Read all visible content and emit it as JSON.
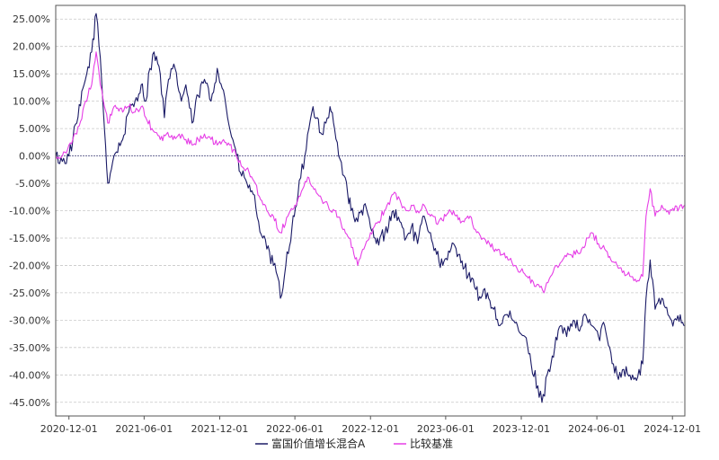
{
  "chart_data": {
    "type": "line",
    "title": "",
    "xlabel": "",
    "ylabel": "",
    "x_range": [
      "2020-10-30",
      "2024-12-31"
    ],
    "ylim": [
      -47.5,
      27.5
    ],
    "y_ticks": [
      25,
      20,
      15,
      10,
      5,
      0,
      -5,
      -10,
      -15,
      -20,
      -25,
      -30,
      -35,
      -40,
      -45
    ],
    "y_tick_labels": [
      "25.00%",
      "20.00%",
      "15.00%",
      "10.00%",
      "5.00%",
      "0.00%",
      "-5.00%",
      "-10.00%",
      "-15.00%",
      "-20.00%",
      "-25.00%",
      "-30.00%",
      "-35.00%",
      "-40.00%",
      "-45.00%"
    ],
    "x_ticks": [
      "2020-12-01",
      "2021-06-01",
      "2021-12-01",
      "2022-06-01",
      "2022-12-01",
      "2023-06-01",
      "2023-12-01",
      "2024-06-01",
      "2024-12-01"
    ],
    "grid": true,
    "legend_position": "bottom",
    "series": [
      {
        "name": "富国价值增长混合A",
        "color": "#1a1a66",
        "points": [
          [
            "2020-10-30",
            0
          ],
          [
            "2020-11-15",
            -1
          ],
          [
            "2020-12-01",
            0
          ],
          [
            "2020-12-20",
            6
          ],
          [
            "2021-01-10",
            14
          ],
          [
            "2021-01-25",
            19
          ],
          [
            "2021-02-05",
            26
          ],
          [
            "2021-02-15",
            18
          ],
          [
            "2021-02-25",
            5
          ],
          [
            "2021-03-05",
            -5
          ],
          [
            "2021-03-20",
            0
          ],
          [
            "2021-04-10",
            3
          ],
          [
            "2021-04-25",
            8
          ],
          [
            "2021-05-10",
            10
          ],
          [
            "2021-05-25",
            13
          ],
          [
            "2021-06-05",
            10
          ],
          [
            "2021-06-15",
            16
          ],
          [
            "2021-06-25",
            19
          ],
          [
            "2021-07-10",
            15
          ],
          [
            "2021-07-20",
            7
          ],
          [
            "2021-07-30",
            14
          ],
          [
            "2021-08-15",
            16
          ],
          [
            "2021-08-30",
            10
          ],
          [
            "2021-09-10",
            13
          ],
          [
            "2021-09-25",
            6
          ],
          [
            "2021-10-10",
            11
          ],
          [
            "2021-10-25",
            14
          ],
          [
            "2021-11-10",
            10
          ],
          [
            "2021-11-25",
            16
          ],
          [
            "2021-12-10",
            12
          ],
          [
            "2021-12-20",
            7
          ],
          [
            "2022-01-05",
            2
          ],
          [
            "2022-01-20",
            -3
          ],
          [
            "2022-02-05",
            -5
          ],
          [
            "2022-02-20",
            -7
          ],
          [
            "2022-03-05",
            -12
          ],
          [
            "2022-03-15",
            -15
          ],
          [
            "2022-03-25",
            -17
          ],
          [
            "2022-04-10",
            -20
          ],
          [
            "2022-04-20",
            -22
          ],
          [
            "2022-04-27",
            -26
          ],
          [
            "2022-05-10",
            -20
          ],
          [
            "2022-05-25",
            -13
          ],
          [
            "2022-06-05",
            -9
          ],
          [
            "2022-06-15",
            -4
          ],
          [
            "2022-06-25",
            0
          ],
          [
            "2022-07-05",
            5
          ],
          [
            "2022-07-15",
            9
          ],
          [
            "2022-07-25",
            7
          ],
          [
            "2022-08-05",
            4
          ],
          [
            "2022-08-15",
            6
          ],
          [
            "2022-08-25",
            9
          ],
          [
            "2022-09-05",
            5
          ],
          [
            "2022-09-15",
            0
          ],
          [
            "2022-10-01",
            -4
          ],
          [
            "2022-10-15",
            -10
          ],
          [
            "2022-10-31",
            -12
          ],
          [
            "2022-11-15",
            -9
          ],
          [
            "2022-12-01",
            -13
          ],
          [
            "2022-12-15",
            -16
          ],
          [
            "2023-01-05",
            -14
          ],
          [
            "2023-01-25",
            -10
          ],
          [
            "2023-02-10",
            -12
          ],
          [
            "2023-02-25",
            -15
          ],
          [
            "2023-03-10",
            -13
          ],
          [
            "2023-03-25",
            -16
          ],
          [
            "2023-04-10",
            -11
          ],
          [
            "2023-04-25",
            -14
          ],
          [
            "2023-05-10",
            -18
          ],
          [
            "2023-05-25",
            -20
          ],
          [
            "2023-06-05",
            -19
          ],
          [
            "2023-06-20",
            -16
          ],
          [
            "2023-07-05",
            -18
          ],
          [
            "2023-07-25",
            -22
          ],
          [
            "2023-08-10",
            -24
          ],
          [
            "2023-08-25",
            -26
          ],
          [
            "2023-09-10",
            -25
          ],
          [
            "2023-09-25",
            -28
          ],
          [
            "2023-10-10",
            -31
          ],
          [
            "2023-10-25",
            -29
          ],
          [
            "2023-11-10",
            -30
          ],
          [
            "2023-11-25",
            -32
          ],
          [
            "2023-12-10",
            -33
          ],
          [
            "2023-12-25",
            -38
          ],
          [
            "2024-01-10",
            -42
          ],
          [
            "2024-01-20",
            -45
          ],
          [
            "2024-02-05",
            -39
          ],
          [
            "2024-02-20",
            -35
          ],
          [
            "2024-03-05",
            -31
          ],
          [
            "2024-03-20",
            -33
          ],
          [
            "2024-04-05",
            -30
          ],
          [
            "2024-04-20",
            -32
          ],
          [
            "2024-05-05",
            -29
          ],
          [
            "2024-05-20",
            -31
          ],
          [
            "2024-06-05",
            -33
          ],
          [
            "2024-06-20",
            -31
          ],
          [
            "2024-07-05",
            -36
          ],
          [
            "2024-07-20",
            -40
          ],
          [
            "2024-08-05",
            -39
          ],
          [
            "2024-08-20",
            -40
          ],
          [
            "2024-09-05",
            -41
          ],
          [
            "2024-09-20",
            -38
          ],
          [
            "2024-09-28",
            -26
          ],
          [
            "2024-10-08",
            -19
          ],
          [
            "2024-10-20",
            -28
          ],
          [
            "2024-11-05",
            -26
          ],
          [
            "2024-11-20",
            -29
          ],
          [
            "2024-12-05",
            -30
          ],
          [
            "2024-12-20",
            -29
          ],
          [
            "2024-12-31",
            -31
          ]
        ]
      },
      {
        "name": "比较基准",
        "color": "#e63ee6",
        "points": [
          [
            "2020-10-30",
            0
          ],
          [
            "2020-11-15",
            0
          ],
          [
            "2020-12-01",
            2
          ],
          [
            "2020-12-20",
            4
          ],
          [
            "2021-01-10",
            10
          ],
          [
            "2021-01-25",
            13
          ],
          [
            "2021-02-05",
            19
          ],
          [
            "2021-02-15",
            13
          ],
          [
            "2021-02-25",
            9
          ],
          [
            "2021-03-05",
            6
          ],
          [
            "2021-03-20",
            9
          ],
          [
            "2021-04-10",
            8
          ],
          [
            "2021-04-25",
            9
          ],
          [
            "2021-05-10",
            8
          ],
          [
            "2021-05-25",
            9
          ],
          [
            "2021-06-05",
            7
          ],
          [
            "2021-06-20",
            5
          ],
          [
            "2021-07-10",
            3
          ],
          [
            "2021-07-25",
            4
          ],
          [
            "2021-08-10",
            3
          ],
          [
            "2021-08-25",
            4
          ],
          [
            "2021-09-10",
            3
          ],
          [
            "2021-09-25",
            2
          ],
          [
            "2021-10-10",
            3
          ],
          [
            "2021-10-25",
            4
          ],
          [
            "2021-11-10",
            3
          ],
          [
            "2021-11-25",
            2
          ],
          [
            "2021-12-10",
            3
          ],
          [
            "2021-12-25",
            2
          ],
          [
            "2022-01-10",
            0
          ],
          [
            "2022-01-25",
            -2
          ],
          [
            "2022-02-10",
            -3
          ],
          [
            "2022-02-25",
            -5
          ],
          [
            "2022-03-10",
            -8
          ],
          [
            "2022-03-25",
            -10
          ],
          [
            "2022-04-10",
            -11
          ],
          [
            "2022-04-27",
            -14
          ],
          [
            "2022-05-15",
            -11
          ],
          [
            "2022-06-01",
            -9
          ],
          [
            "2022-06-20",
            -6
          ],
          [
            "2022-07-05",
            -4
          ],
          [
            "2022-07-20",
            -6
          ],
          [
            "2022-08-05",
            -8
          ],
          [
            "2022-08-20",
            -9
          ],
          [
            "2022-09-05",
            -10
          ],
          [
            "2022-09-20",
            -12
          ],
          [
            "2022-10-10",
            -15
          ],
          [
            "2022-10-31",
            -20
          ],
          [
            "2022-11-15",
            -17
          ],
          [
            "2022-12-01",
            -14
          ],
          [
            "2022-12-20",
            -12
          ],
          [
            "2023-01-10",
            -9
          ],
          [
            "2023-01-25",
            -7
          ],
          [
            "2023-02-10",
            -8
          ],
          [
            "2023-02-25",
            -10
          ],
          [
            "2023-03-10",
            -9
          ],
          [
            "2023-03-25",
            -10
          ],
          [
            "2023-04-10",
            -9
          ],
          [
            "2023-04-25",
            -11
          ],
          [
            "2023-05-15",
            -12
          ],
          [
            "2023-06-01",
            -11
          ],
          [
            "2023-06-20",
            -10
          ],
          [
            "2023-07-10",
            -12
          ],
          [
            "2023-07-30",
            -11
          ],
          [
            "2023-08-15",
            -14
          ],
          [
            "2023-08-30",
            -15
          ],
          [
            "2023-09-15",
            -16
          ],
          [
            "2023-09-30",
            -17
          ],
          [
            "2023-10-15",
            -18
          ],
          [
            "2023-10-30",
            -19
          ],
          [
            "2023-11-15",
            -20
          ],
          [
            "2023-11-30",
            -21
          ],
          [
            "2023-12-15",
            -22
          ],
          [
            "2023-12-30",
            -23
          ],
          [
            "2024-01-15",
            -24
          ],
          [
            "2024-01-25",
            -25
          ],
          [
            "2024-02-10",
            -22
          ],
          [
            "2024-02-25",
            -20
          ],
          [
            "2024-03-10",
            -19
          ],
          [
            "2024-03-25",
            -18
          ],
          [
            "2024-04-10",
            -18
          ],
          [
            "2024-04-25",
            -17
          ],
          [
            "2024-05-10",
            -15
          ],
          [
            "2024-05-20",
            -14
          ],
          [
            "2024-06-05",
            -16
          ],
          [
            "2024-06-20",
            -17
          ],
          [
            "2024-07-05",
            -19
          ],
          [
            "2024-07-20",
            -20
          ],
          [
            "2024-08-05",
            -21
          ],
          [
            "2024-08-20",
            -22
          ],
          [
            "2024-09-05",
            -23
          ],
          [
            "2024-09-20",
            -22
          ],
          [
            "2024-09-28",
            -11
          ],
          [
            "2024-10-08",
            -6
          ],
          [
            "2024-10-20",
            -11
          ],
          [
            "2024-11-05",
            -9
          ],
          [
            "2024-11-20",
            -10
          ],
          [
            "2024-12-05",
            -10
          ],
          [
            "2024-12-20",
            -9
          ],
          [
            "2024-12-31",
            -9
          ]
        ]
      }
    ]
  }
}
